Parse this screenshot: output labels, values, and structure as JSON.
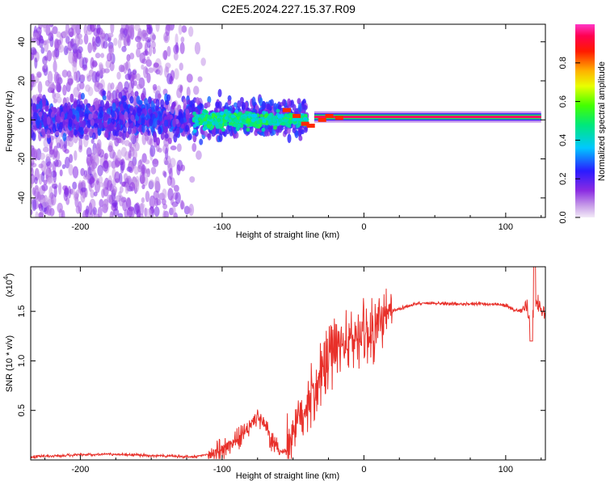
{
  "title": "C2E5.2024.227.15.37.R09",
  "colors": {
    "axis": "#000000",
    "snr_line": "#e8302a",
    "spectrogram_bg": "#ffffff"
  },
  "chart_data": [
    {
      "type": "heatmap",
      "title": "C2E5.2024.227.15.37.R09",
      "xlabel": "Height of straight line (km)",
      "ylabel": "Frequency (Hz)",
      "xlim": [
        -235,
        128
      ],
      "ylim": [
        -50,
        49
      ],
      "x_ticks": [
        -200,
        -100,
        0,
        100
      ],
      "x_tick_labels": [
        "-200",
        "-100",
        "0",
        "100"
      ],
      "y_ticks": [
        -40,
        -20,
        0,
        20,
        40
      ],
      "y_tick_labels": [
        "-40",
        "-20",
        "0",
        "20",
        "40"
      ],
      "colorbar": {
        "label": "Normalized spectral amplitude",
        "range": [
          0,
          1
        ],
        "ticks": [
          0,
          0.2,
          0.4,
          0.6,
          0.8
        ],
        "tick_labels": [
          "0.0",
          "0.2",
          "0.4",
          "0.6",
          "0.8"
        ],
        "colormap": "rainbow: white-lavender (0) to purple, blue, cyan, green, yellow, orange, red, magenta (1)"
      },
      "features": [
        {
          "name": "scattered noise",
          "x_range": [
            -235,
            -110
          ],
          "frequency_range": [
            -50,
            49
          ],
          "amplitude": 0.05
        },
        {
          "name": "broadband band",
          "x_range": [
            -235,
            -40
          ],
          "frequency_range": [
            -8,
            10
          ],
          "amplitude": 0.2
        },
        {
          "name": "transition band",
          "x_range": [
            -120,
            -40
          ],
          "frequency_range": [
            -6,
            6
          ],
          "amplitude": 0.35
        },
        {
          "name": "carrier line",
          "x_range": [
            -35,
            125
          ],
          "frequency_center": 1.5,
          "amplitude": 0.95
        }
      ]
    },
    {
      "type": "line",
      "xlabel": "Height of straight line (km)",
      "ylabel": "SNR (10 * v/v)",
      "y_scale_label": "(x10",
      "y_scale_exponent": "4",
      "xlim": [
        -235,
        128
      ],
      "ylim": [
        0,
        1.95
      ],
      "x_ticks": [
        -200,
        -100,
        0,
        100
      ],
      "x_tick_labels": [
        "-200",
        "-100",
        "0",
        "100"
      ],
      "y_ticks": [
        0.5,
        1.0,
        1.5
      ],
      "y_tick_labels": [
        "0.5",
        "1.0",
        "1.5"
      ],
      "series": [
        {
          "values_description": "SNR in units of 10^4",
          "x": [
            -235,
            -220,
            -200,
            -180,
            -160,
            -140,
            -120,
            -105,
            -95,
            -85,
            -80,
            -75,
            -70,
            -65,
            -60,
            -55,
            -50,
            -45,
            -40,
            -35,
            -30,
            -25,
            -20,
            -15,
            -10,
            -5,
            0,
            5,
            10,
            15,
            20,
            30,
            40,
            50,
            60,
            70,
            80,
            90,
            100,
            105,
            110,
            115,
            118,
            120,
            122,
            125,
            128
          ],
          "y": [
            0.03,
            0.04,
            0.05,
            0.06,
            0.05,
            0.04,
            0.03,
            0.07,
            0.15,
            0.25,
            0.35,
            0.45,
            0.35,
            0.18,
            0.08,
            0.1,
            0.3,
            0.45,
            0.55,
            0.7,
            0.85,
            1.0,
            1.1,
            1.15,
            1.2,
            1.25,
            1.3,
            1.28,
            1.33,
            1.42,
            1.5,
            1.55,
            1.58,
            1.58,
            1.58,
            1.57,
            1.58,
            1.57,
            1.56,
            1.52,
            1.5,
            1.55,
            1.3,
            1.55,
            1.62,
            1.5,
            1.5
          ]
        }
      ]
    }
  ]
}
